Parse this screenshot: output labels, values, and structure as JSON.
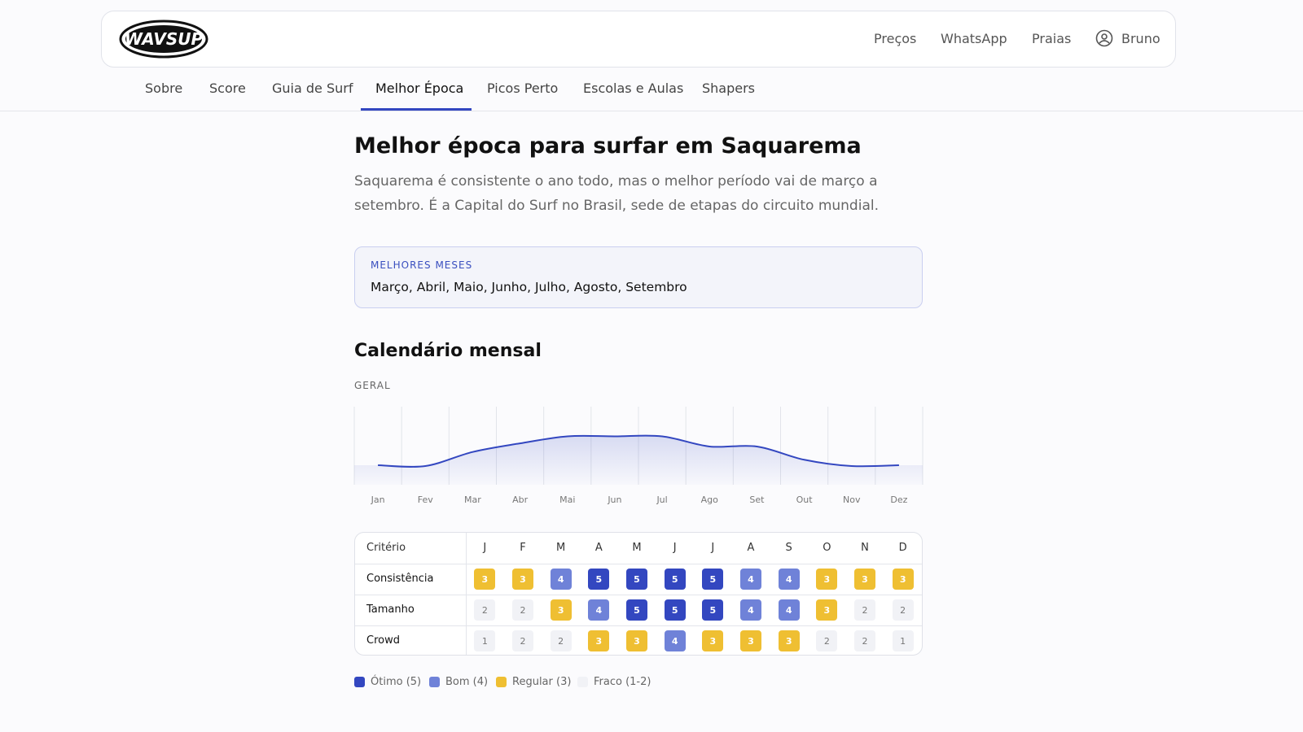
{
  "header": {
    "logo": "WAVSUP",
    "nav": [
      "Preços",
      "WhatsApp",
      "Praias"
    ],
    "user": "Bruno"
  },
  "tabs": {
    "items": [
      "Sobre",
      "Score",
      "Guia de Surf",
      "Melhor Época",
      "Picos Perto",
      "Escolas e Aulas",
      "Shapers"
    ],
    "active": 3
  },
  "page": {
    "title": "Melhor época para surfar em Saquarema",
    "description": "Saquarema é consistente o ano todo, mas o melhor período vai de março a setembro. É a Capital do Surf no Brasil, sede de etapas do circuito mundial.",
    "best_months": {
      "label": "MELHORES MESES",
      "value": "Março, Abril, Maio, Junho, Julho, Agosto, Setembro"
    },
    "calendar_title": "Calendário mensal"
  },
  "chart_data": {
    "type": "area",
    "title": "GERAL",
    "categories": [
      "Jan",
      "Fev",
      "Mar",
      "Abr",
      "Mai",
      "Jun",
      "Jul",
      "Ago",
      "Set",
      "Out",
      "Nov",
      "Dez"
    ],
    "values": [
      1.25,
      1.2,
      2.1,
      2.65,
      3.1,
      3.1,
      3.1,
      2.45,
      2.45,
      1.6,
      1.2,
      1.25
    ],
    "color": "#3347c0",
    "ylim": [
      0,
      5
    ],
    "grid": true
  },
  "table": {
    "header": "Critério",
    "columns": [
      "J",
      "F",
      "M",
      "A",
      "M",
      "J",
      "J",
      "A",
      "S",
      "O",
      "N",
      "D"
    ],
    "rows": [
      {
        "label": "Consistência",
        "values": [
          3,
          3,
          4,
          5,
          5,
          5,
          5,
          4,
          4,
          3,
          3,
          3
        ]
      },
      {
        "label": "Tamanho",
        "values": [
          2,
          2,
          3,
          4,
          5,
          5,
          5,
          4,
          4,
          3,
          2,
          2
        ]
      },
      {
        "label": "Crowd",
        "values": [
          1,
          2,
          2,
          3,
          3,
          4,
          3,
          3,
          3,
          2,
          2,
          1
        ]
      }
    ]
  },
  "legend": [
    {
      "label": "Ótimo (5)",
      "color": "#3347c0"
    },
    {
      "label": "Bom (4)",
      "color": "#6f82d8"
    },
    {
      "label": "Regular (3)",
      "color": "#efbf32"
    },
    {
      "label": "Fraco (1-2)",
      "color": "#f1f2f6"
    }
  ]
}
